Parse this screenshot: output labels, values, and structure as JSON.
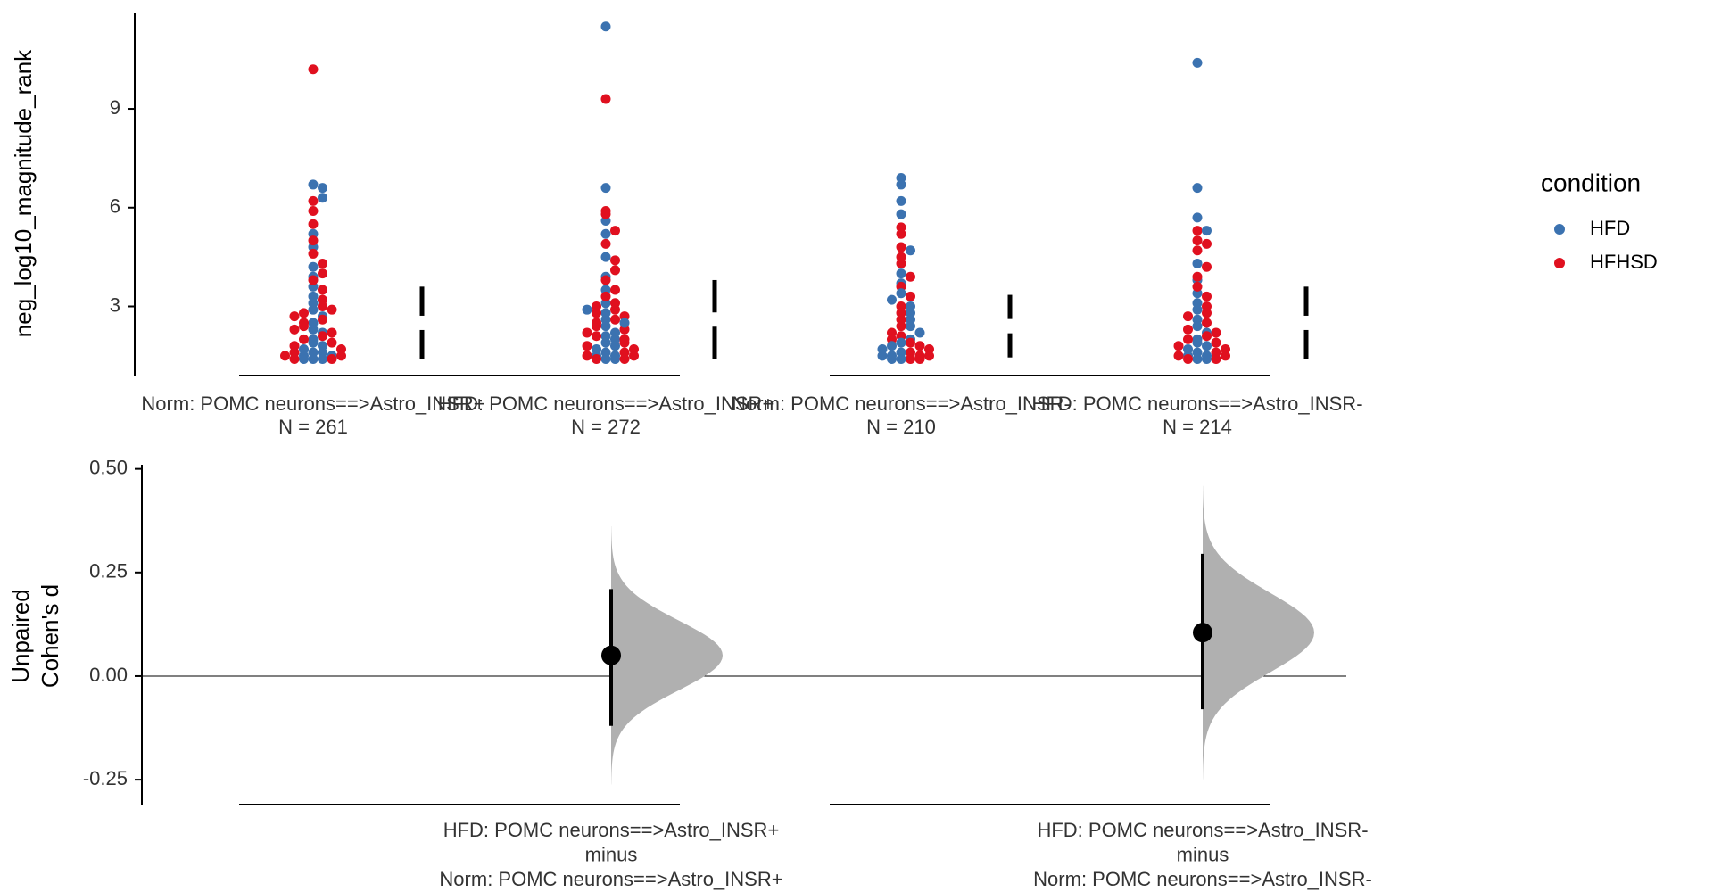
{
  "chart_data": [
    {
      "type": "swarm",
      "ylabel": "neg_log10_magnitude_rank",
      "ylim": [
        0.9,
        11.9
      ],
      "yticks": [
        3,
        6,
        9
      ],
      "legend_title": "condition",
      "legend": [
        {
          "name": "HFD",
          "color": "#3b72b0"
        },
        {
          "name": "HFHSD",
          "color": "#e0101f"
        }
      ],
      "groups": [
        {
          "label": "Norm: POMC neurons==>Astro_INSR+",
          "n_label": "N = 261",
          "mean": 2.5,
          "sd": 1.1,
          "series": [
            {
              "name": "HFD",
              "values": [
                6.7,
                6.6,
                6.3,
                5.2,
                4.8,
                4.2,
                3.9,
                3.6,
                3.3,
                3.1,
                2.9,
                2.7,
                2.5,
                2.3,
                2.2,
                2.0,
                1.9,
                1.8,
                1.7,
                1.6,
                1.6,
                1.5,
                1.5,
                1.4,
                1.4,
                1.4
              ]
            },
            {
              "name": "HFHSD",
              "values": [
                10.2,
                6.2,
                5.9,
                5.5,
                5.0,
                4.6,
                4.3,
                4.0,
                3.8,
                3.5,
                3.2,
                3.0,
                2.8,
                2.6,
                2.5,
                2.4,
                2.2,
                2.1,
                2.0,
                1.9,
                1.8,
                1.7,
                1.6,
                1.5,
                1.5,
                1.4,
                1.4,
                2.9,
                2.7,
                2.3
              ]
            }
          ]
        },
        {
          "label": "HFD: POMC neurons==>Astro_INSR+",
          "n_label": "N = 272",
          "mean": 2.6,
          "sd": 1.2,
          "series": [
            {
              "name": "HFD",
              "values": [
                11.5,
                6.6,
                5.6,
                5.2,
                4.5,
                3.9,
                3.5,
                3.1,
                2.8,
                2.6,
                2.4,
                2.2,
                2.1,
                2.0,
                1.9,
                1.8,
                1.7,
                1.6,
                1.5,
                1.5,
                1.4,
                1.4,
                2.9,
                2.5
              ]
            },
            {
              "name": "HFHSD",
              "values": [
                9.3,
                5.9,
                5.8,
                5.3,
                4.9,
                4.4,
                4.1,
                3.8,
                3.5,
                3.3,
                3.1,
                3.0,
                2.9,
                2.8,
                2.7,
                2.6,
                2.5,
                2.4,
                2.3,
                2.2,
                2.1,
                2.0,
                1.9,
                1.8,
                1.7,
                1.6,
                1.5,
                1.5,
                1.4,
                1.4
              ]
            }
          ]
        },
        {
          "label": "Norm: POMC neurons==>Astro_INSR-",
          "n_label": "N = 210",
          "mean": 2.4,
          "sd": 0.95,
          "series": [
            {
              "name": "HFD",
              "values": [
                6.9,
                6.7,
                6.2,
                5.8,
                4.7,
                4.0,
                3.7,
                3.4,
                3.2,
                3.0,
                2.8,
                2.6,
                2.4,
                2.2,
                2.0,
                1.9,
                1.8,
                1.7,
                1.6,
                1.5,
                1.5,
                1.4,
                1.4
              ]
            },
            {
              "name": "HFHSD",
              "values": [
                5.4,
                5.2,
                4.8,
                4.5,
                4.3,
                3.9,
                3.6,
                3.3,
                3.0,
                2.8,
                2.6,
                2.4,
                2.2,
                2.1,
                2.0,
                1.9,
                1.8,
                1.7,
                1.6,
                1.5,
                1.5,
                1.4,
                1.4
              ]
            }
          ]
        },
        {
          "label": "HFD: POMC neurons==>Astro_INSR-",
          "n_label": "N = 214",
          "mean": 2.5,
          "sd": 1.1,
          "series": [
            {
              "name": "HFD",
              "values": [
                10.4,
                6.6,
                5.7,
                5.3,
                4.3,
                3.8,
                3.4,
                3.1,
                2.9,
                2.6,
                2.4,
                2.2,
                2.0,
                1.9,
                1.8,
                1.7,
                1.6,
                1.5,
                1.5,
                1.4,
                1.4
              ]
            },
            {
              "name": "HFHSD",
              "values": [
                5.3,
                5.0,
                4.9,
                4.7,
                4.2,
                3.9,
                3.6,
                3.3,
                3.0,
                2.8,
                2.7,
                2.5,
                2.3,
                2.2,
                2.1,
                2.0,
                1.9,
                1.8,
                1.7,
                1.6,
                1.5,
                1.5,
                1.4,
                1.4
              ]
            }
          ]
        }
      ]
    },
    {
      "type": "contrast",
      "ylabel": [
        "Unpaired",
        "Cohen's d"
      ],
      "ylim": [
        -0.31,
        0.51
      ],
      "yticks": [
        {
          "value": 0.5,
          "label": "0.50"
        },
        {
          "value": 0.25,
          "label": "0.25"
        },
        {
          "value": 0,
          "label": "0.00"
        },
        {
          "value": -0.25,
          "label": "-0.25"
        }
      ],
      "comparisons": [
        {
          "label": [
            "HFD: POMC neurons==>Astro_INSR+",
            "minus",
            "Norm: POMC neurons==>Astro_INSR+"
          ],
          "effect": 0.05,
          "ci": [
            -0.12,
            0.21
          ]
        },
        {
          "label": [
            "HFD: POMC neurons==>Astro_INSR-",
            "minus",
            "Norm: POMC neurons==>Astro_INSR-"
          ],
          "effect": 0.105,
          "ci": [
            -0.08,
            0.295
          ]
        }
      ]
    }
  ]
}
